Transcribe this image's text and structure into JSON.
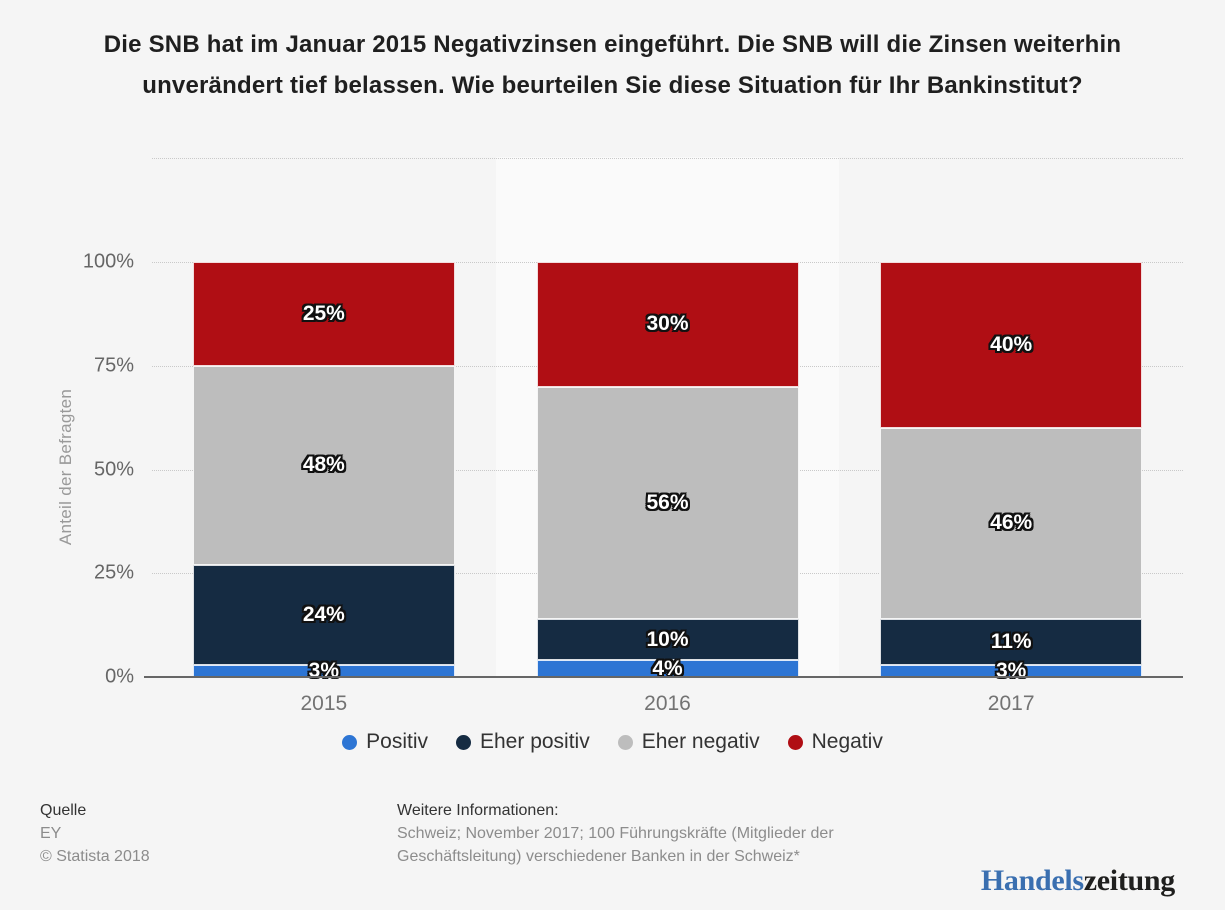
{
  "title": "Die SNB hat im Januar 2015 Negativzinsen eingeführt. Die SNB will die Zinsen weiterhin unverändert tief belassen. Wie beurteilen Sie diese Situation für Ihr Bankinstitut?",
  "chart_data": {
    "type": "bar",
    "stacked": true,
    "stacking_unit": "percent",
    "categories": [
      "2015",
      "2016",
      "2017"
    ],
    "series": [
      {
        "name": "Positiv",
        "color": "#2d75d4",
        "values": [
          3,
          4,
          3
        ]
      },
      {
        "name": "Eher positiv",
        "color": "#152b42",
        "values": [
          24,
          10,
          11
        ]
      },
      {
        "name": "Eher negativ",
        "color": "#bdbdbd",
        "values": [
          48,
          56,
          46
        ]
      },
      {
        "name": "Negativ",
        "color": "#b00e14",
        "values": [
          25,
          30,
          40
        ]
      }
    ],
    "xlabel": "",
    "ylabel": "Anteil der Befragten",
    "ylim": [
      0,
      100
    ],
    "yticks": [
      "0%",
      "25%",
      "50%",
      "75%",
      "100%"
    ],
    "value_suffix": "%",
    "grid": "horizontal dotted",
    "legend_position": "bottom",
    "data_labels": "white with dark outline, centered in segments"
  },
  "footer": {
    "source_label": "Quelle",
    "source": "EY",
    "copyright": "© Statista 2018",
    "info_label": "Weitere Informationen:",
    "info": "Schweiz; November 2017; 100 Führungskräfte (Mitglieder der Geschäftsleitung) verschiedener Banken in der Schweiz*"
  },
  "logo": {
    "part1": "Handels",
    "part2": "zeitung",
    "part1_color": "#3a6fb0",
    "part2_color": "#1f1f1e"
  }
}
